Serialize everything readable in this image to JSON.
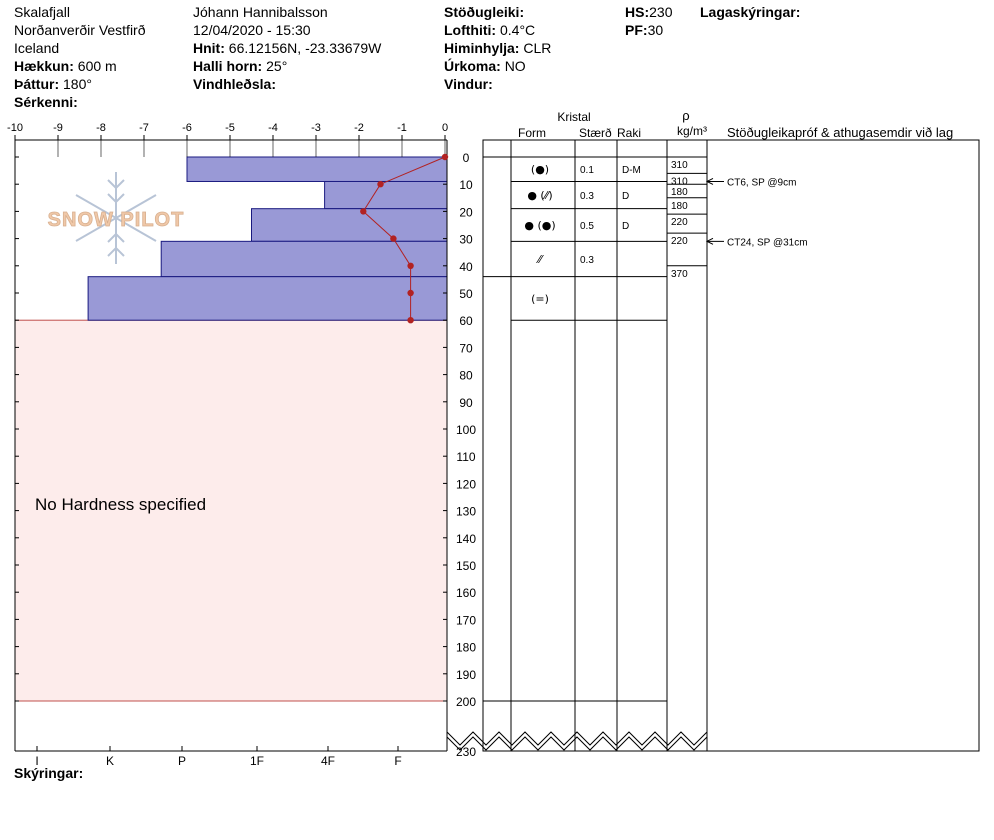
{
  "header": {
    "col1": {
      "location": "Skalafjall",
      "region": "Norðanverðir Vestfirð",
      "country": "Iceland",
      "elevation_label": "Hækkun:",
      "elevation": "600 m",
      "aspect_label": "Þáttur:",
      "aspect": "180°",
      "features_label": "Sérkenni:"
    },
    "col2": {
      "observer": "Jóhann Hannibalsson",
      "datetime": "12/04/2020 - 15:30",
      "coords_label": "Hnit:",
      "coords": "66.12156N, -23.33679W",
      "slope_label": "Halli horn:",
      "slope": "25°",
      "windload_label": "Vindhleðsla:"
    },
    "col3": {
      "stability_label": "Stöðugleiki:",
      "airtemp_label": "Lofthiti:",
      "airtemp": "0.4°C",
      "sky_label": "Himinhylja:",
      "sky": "CLR",
      "precip_label": "Úrkoma:",
      "precip": "NO",
      "wind_label": "Vindur:"
    },
    "col4": {
      "hs_label": "HS:",
      "hs": "230",
      "pf_label": "PF:",
      "pf": "30"
    },
    "layer_notes_label": "Lagaskýringar:"
  },
  "footer": {
    "legend_label": "Skýringar:"
  },
  "chart_data": {
    "type": "snow_profile",
    "temp_axis": {
      "ticks": [
        "-10",
        "-9",
        "-8",
        "-7",
        "-6",
        "-5",
        "-4",
        "-3",
        "-2",
        "-1",
        "0"
      ],
      "range": [
        -10,
        0
      ]
    },
    "depth_axis": {
      "range": [
        0,
        230
      ],
      "ticks": [
        0,
        10,
        20,
        30,
        40,
        50,
        60,
        70,
        80,
        90,
        100,
        110,
        120,
        130,
        140,
        150,
        160,
        170,
        180,
        190,
        200
      ],
      "bottom_label": "230"
    },
    "hardness_axis": [
      "I",
      "K",
      "P",
      "1F",
      "4F",
      "F"
    ],
    "no_hardness_text": "No Hardness specified",
    "hardness_bars": [
      {
        "top": 0,
        "bottom": 9,
        "temp_extent": -6.0
      },
      {
        "top": 9,
        "bottom": 19,
        "temp_extent": -2.8
      },
      {
        "top": 19,
        "bottom": 31,
        "temp_extent": -4.5
      },
      {
        "top": 31,
        "bottom": 44,
        "temp_extent": -6.6
      },
      {
        "top": 44,
        "bottom": 60,
        "temp_extent": -8.3
      }
    ],
    "temp_profile": [
      {
        "depth": 0,
        "temp": 0.0
      },
      {
        "depth": 10,
        "temp": -1.5
      },
      {
        "depth": 20,
        "temp": -1.9
      },
      {
        "depth": 30,
        "temp": -1.2
      },
      {
        "depth": 40,
        "temp": -0.8
      },
      {
        "depth": 50,
        "temp": -0.8
      },
      {
        "depth": 60,
        "temp": -0.8
      }
    ],
    "columns": {
      "crystal_header": "Kristal",
      "form_header": "Form",
      "size_header": "Stærð",
      "moisture_header": "Raki",
      "density_header_symbol": "ρ",
      "density_header_unit": "kg/m³",
      "tests_header": "Stöðugleikapróf & athugasemdir við lag"
    },
    "layer_rows": [
      {
        "top": 0,
        "bottom": 9,
        "form": "(●)",
        "size": "0.1",
        "moisture": "D-M"
      },
      {
        "top": 9,
        "bottom": 19,
        "form": "● (⁄⁄)",
        "size": "0.3",
        "moisture": "D"
      },
      {
        "top": 19,
        "bottom": 31,
        "form": "● (●)",
        "size": "0.5",
        "moisture": "D"
      },
      {
        "top": 31,
        "bottom": 44,
        "form": "⁄⁄",
        "size": "0.3",
        "moisture": ""
      },
      {
        "top": 44,
        "bottom": 60,
        "form": "(=)",
        "size": "",
        "moisture": ""
      }
    ],
    "density": [
      {
        "top": 0,
        "bottom": 6,
        "value": "310"
      },
      {
        "top": 6,
        "bottom": 10,
        "value": "310"
      },
      {
        "top": 10,
        "bottom": 15,
        "value": "180"
      },
      {
        "top": 15,
        "bottom": 21,
        "value": "180"
      },
      {
        "top": 21,
        "bottom": 28,
        "value": "220"
      },
      {
        "top": 28,
        "bottom": 40,
        "value": "220"
      },
      {
        "top": 40,
        "bottom": 40,
        "value": "370"
      }
    ],
    "tests": [
      {
        "depth": 9,
        "text": "CT6, SP @9cm"
      },
      {
        "depth": 31,
        "text": "CT24, SP @31cm"
      }
    ]
  }
}
